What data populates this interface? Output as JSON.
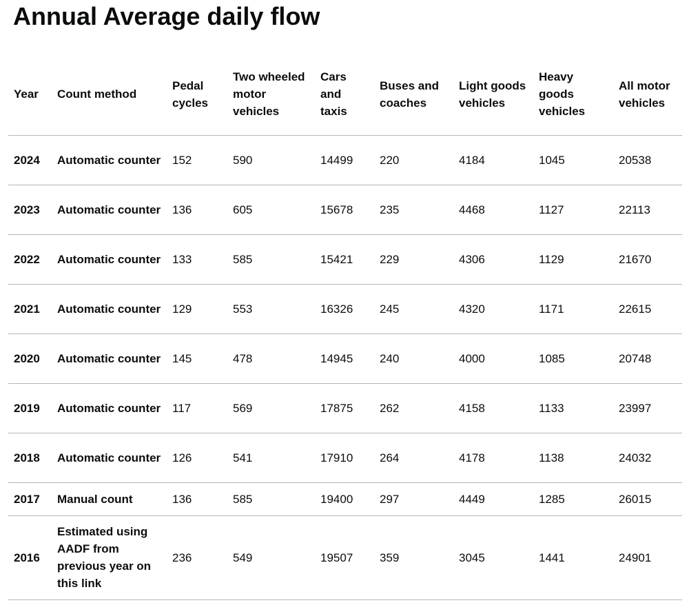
{
  "title": "Annual Average daily flow",
  "table": {
    "headers": [
      "Year",
      "Count method",
      "Pedal cycles",
      "Two wheeled motor vehicles",
      "Cars and taxis",
      "Buses and coaches",
      "Light goods vehicles",
      "Heavy goods vehicles",
      "All motor vehicles"
    ],
    "rows": [
      {
        "year": "2024",
        "method": "Automatic counter",
        "pedal": "152",
        "two_wheeled": "590",
        "cars": "14499",
        "buses": "220",
        "lgv": "4184",
        "hgv": "1045",
        "all": "20538"
      },
      {
        "year": "2023",
        "method": "Automatic counter",
        "pedal": "136",
        "two_wheeled": "605",
        "cars": "15678",
        "buses": "235",
        "lgv": "4468",
        "hgv": "1127",
        "all": "22113"
      },
      {
        "year": "2022",
        "method": "Automatic counter",
        "pedal": "133",
        "two_wheeled": "585",
        "cars": "15421",
        "buses": "229",
        "lgv": "4306",
        "hgv": "1129",
        "all": "21670"
      },
      {
        "year": "2021",
        "method": "Automatic counter",
        "pedal": "129",
        "two_wheeled": "553",
        "cars": "16326",
        "buses": "245",
        "lgv": "4320",
        "hgv": "1171",
        "all": "22615"
      },
      {
        "year": "2020",
        "method": "Automatic counter",
        "pedal": "145",
        "two_wheeled": "478",
        "cars": "14945",
        "buses": "240",
        "lgv": "4000",
        "hgv": "1085",
        "all": "20748"
      },
      {
        "year": "2019",
        "method": "Automatic counter",
        "pedal": "117",
        "two_wheeled": "569",
        "cars": "17875",
        "buses": "262",
        "lgv": "4158",
        "hgv": "1133",
        "all": "23997"
      },
      {
        "year": "2018",
        "method": "Automatic counter",
        "pedal": "126",
        "two_wheeled": "541",
        "cars": "17910",
        "buses": "264",
        "lgv": "4178",
        "hgv": "1138",
        "all": "24032"
      },
      {
        "year": "2017",
        "method": "Manual count",
        "pedal": "136",
        "two_wheeled": "585",
        "cars": "19400",
        "buses": "297",
        "lgv": "4449",
        "hgv": "1285",
        "all": "26015"
      },
      {
        "year": "2016",
        "method": "Estimated using AADF from previous year on this link",
        "pedal": "236",
        "two_wheeled": "549",
        "cars": "19507",
        "buses": "359",
        "lgv": "3045",
        "hgv": "1441",
        "all": "24901"
      }
    ]
  }
}
